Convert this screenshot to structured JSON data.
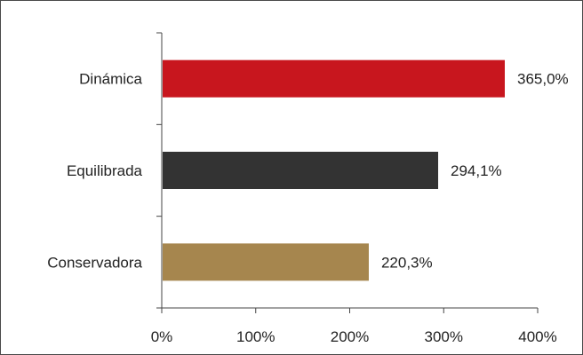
{
  "chart_data": {
    "type": "bar",
    "orientation": "horizontal",
    "categories": [
      "Dinámica",
      "Equilibrada",
      "Conservadora"
    ],
    "values": [
      365.0,
      294.1,
      220.3
    ],
    "value_labels": [
      "365,0%",
      "294,1%",
      "220,3%"
    ],
    "colors": [
      "#c8161e",
      "#333333",
      "#a6864e"
    ],
    "xlim": [
      0,
      400
    ],
    "x_ticks": [
      0,
      100,
      200,
      300,
      400
    ],
    "x_tick_labels": [
      "0%",
      "100%",
      "200%",
      "300%",
      "400%"
    ],
    "title": "",
    "xlabel": "",
    "ylabel": "",
    "grid": false,
    "legend": "none"
  }
}
